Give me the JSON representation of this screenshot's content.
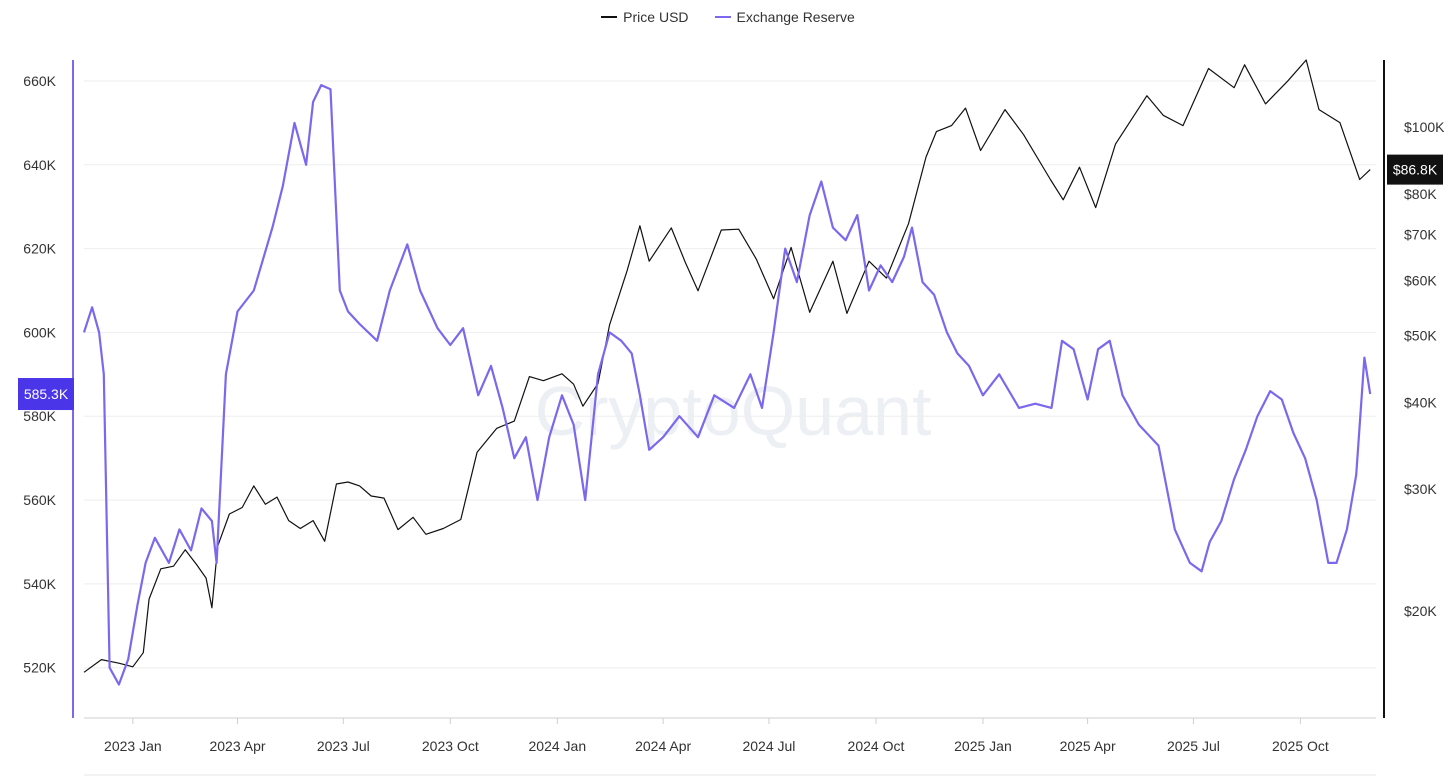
{
  "legend": {
    "price_label": "Price USD",
    "reserve_label": "Exchange Reserve"
  },
  "watermark": "CryptoQuant",
  "colors": {
    "price": "#111111",
    "reserve": "#7b68ee",
    "reserve_badge": "#4a35e8",
    "price_badge": "#111111"
  },
  "chart_data": {
    "type": "line",
    "x_ticks": [
      "2023 Jan",
      "2023 Apr",
      "2023 Jul",
      "2023 Oct",
      "2024 Jan",
      "2024 Apr",
      "2024 Jul",
      "2024 Oct",
      "2025 Jan",
      "2025 Apr",
      "2025 Jul",
      "2025 Oct"
    ],
    "x_range": [
      "2022-11-20",
      "2025-12-05"
    ],
    "y_left": {
      "label": "",
      "range": [
        508000,
        665000
      ],
      "ticks": [
        520000,
        540000,
        560000,
        580000,
        600000,
        620000,
        640000,
        660000
      ],
      "tick_labels": [
        "520K",
        "540K",
        "560K",
        "580K",
        "600K",
        "620K",
        "640K",
        "660K"
      ]
    },
    "y_right": {
      "label": "",
      "scale": "log",
      "range": [
        14000,
        125000
      ],
      "ticks": [
        20000,
        30000,
        40000,
        50000,
        60000,
        70000,
        80000,
        100000
      ],
      "tick_labels": [
        "$20K",
        "$30K",
        "$40K",
        "$50K",
        "$60K",
        "$70K",
        "$80K",
        "$100K"
      ]
    },
    "current_values": {
      "reserve": "585.3K",
      "price": "$86.8K"
    },
    "series": [
      {
        "name": "Price USD",
        "axis": "right",
        "points": [
          [
            "2022-11-20",
            16300
          ],
          [
            "2022-12-05",
            17000
          ],
          [
            "2022-12-20",
            16800
          ],
          [
            "2023-01-01",
            16600
          ],
          [
            "2023-01-10",
            17400
          ],
          [
            "2023-01-15",
            20800
          ],
          [
            "2023-01-25",
            23000
          ],
          [
            "2023-02-05",
            23200
          ],
          [
            "2023-02-15",
            24500
          ],
          [
            "2023-02-25",
            23300
          ],
          [
            "2023-03-05",
            22300
          ],
          [
            "2023-03-10",
            20200
          ],
          [
            "2023-03-15",
            24800
          ],
          [
            "2023-03-25",
            27600
          ],
          [
            "2023-04-05",
            28200
          ],
          [
            "2023-04-15",
            30300
          ],
          [
            "2023-04-25",
            28500
          ],
          [
            "2023-05-05",
            29200
          ],
          [
            "2023-05-15",
            27000
          ],
          [
            "2023-05-25",
            26300
          ],
          [
            "2023-06-05",
            27000
          ],
          [
            "2023-06-15",
            25200
          ],
          [
            "2023-06-25",
            30500
          ],
          [
            "2023-07-05",
            30700
          ],
          [
            "2023-07-15",
            30300
          ],
          [
            "2023-07-25",
            29300
          ],
          [
            "2023-08-05",
            29100
          ],
          [
            "2023-08-17",
            26200
          ],
          [
            "2023-08-30",
            27300
          ],
          [
            "2023-09-10",
            25800
          ],
          [
            "2023-09-25",
            26300
          ],
          [
            "2023-10-10",
            27100
          ],
          [
            "2023-10-24",
            33900
          ],
          [
            "2023-11-10",
            36700
          ],
          [
            "2023-11-25",
            37600
          ],
          [
            "2023-12-08",
            43600
          ],
          [
            "2023-12-20",
            43000
          ],
          [
            "2024-01-05",
            44000
          ],
          [
            "2024-01-15",
            42500
          ],
          [
            "2024-01-23",
            39500
          ],
          [
            "2024-02-05",
            42600
          ],
          [
            "2024-02-15",
            51800
          ],
          [
            "2024-03-01",
            62000
          ],
          [
            "2024-03-12",
            72000
          ],
          [
            "2024-03-20",
            64000
          ],
          [
            "2024-04-08",
            71500
          ],
          [
            "2024-04-20",
            63800
          ],
          [
            "2024-05-01",
            58000
          ],
          [
            "2024-05-21",
            71000
          ],
          [
            "2024-06-05",
            71200
          ],
          [
            "2024-06-20",
            64500
          ],
          [
            "2024-07-05",
            56500
          ],
          [
            "2024-07-20",
            67000
          ],
          [
            "2024-08-05",
            54000
          ],
          [
            "2024-08-25",
            64000
          ],
          [
            "2024-09-06",
            53800
          ],
          [
            "2024-09-25",
            64000
          ],
          [
            "2024-10-10",
            60500
          ],
          [
            "2024-10-29",
            72500
          ],
          [
            "2024-11-13",
            90500
          ],
          [
            "2024-11-22",
            98500
          ],
          [
            "2024-12-05",
            100500
          ],
          [
            "2024-12-17",
            106500
          ],
          [
            "2024-12-30",
            92500
          ],
          [
            "2025-01-20",
            106000
          ],
          [
            "2025-02-05",
            97500
          ],
          [
            "2025-02-28",
            84000
          ],
          [
            "2025-03-11",
            78500
          ],
          [
            "2025-03-25",
            87500
          ],
          [
            "2025-04-08",
            76500
          ],
          [
            "2025-04-25",
            94500
          ],
          [
            "2025-05-22",
            111000
          ],
          [
            "2025-06-05",
            104000
          ],
          [
            "2025-06-22",
            100500
          ],
          [
            "2025-07-14",
            121500
          ],
          [
            "2025-08-05",
            114000
          ],
          [
            "2025-08-14",
            123000
          ],
          [
            "2025-09-01",
            108000
          ],
          [
            "2025-09-20",
            116500
          ],
          [
            "2025-10-06",
            125000
          ],
          [
            "2025-10-17",
            106000
          ],
          [
            "2025-11-04",
            101500
          ],
          [
            "2025-11-21",
            84000
          ],
          [
            "2025-11-30",
            86800
          ]
        ]
      },
      {
        "name": "Exchange Reserve",
        "axis": "left",
        "points": [
          [
            "2022-11-20",
            600000
          ],
          [
            "2022-11-27",
            606000
          ],
          [
            "2022-12-03",
            600000
          ],
          [
            "2022-12-07",
            590000
          ],
          [
            "2022-12-12",
            520000
          ],
          [
            "2022-12-20",
            516000
          ],
          [
            "2022-12-28",
            522000
          ],
          [
            "2023-01-05",
            535000
          ],
          [
            "2023-01-12",
            545000
          ],
          [
            "2023-01-20",
            551000
          ],
          [
            "2023-02-01",
            545000
          ],
          [
            "2023-02-10",
            553000
          ],
          [
            "2023-02-20",
            548000
          ],
          [
            "2023-03-01",
            558000
          ],
          [
            "2023-03-10",
            555000
          ],
          [
            "2023-03-14",
            545000
          ],
          [
            "2023-03-22",
            590000
          ],
          [
            "2023-04-01",
            605000
          ],
          [
            "2023-04-15",
            610000
          ],
          [
            "2023-05-01",
            625000
          ],
          [
            "2023-05-10",
            635000
          ],
          [
            "2023-05-20",
            650000
          ],
          [
            "2023-05-30",
            640000
          ],
          [
            "2023-06-05",
            655000
          ],
          [
            "2023-06-12",
            659000
          ],
          [
            "2023-06-20",
            658000
          ],
          [
            "2023-06-28",
            610000
          ],
          [
            "2023-07-05",
            605000
          ],
          [
            "2023-07-15",
            602000
          ],
          [
            "2023-07-30",
            598000
          ],
          [
            "2023-08-10",
            610000
          ],
          [
            "2023-08-25",
            621000
          ],
          [
            "2023-09-05",
            610000
          ],
          [
            "2023-09-20",
            601000
          ],
          [
            "2023-10-01",
            597000
          ],
          [
            "2023-10-12",
            601000
          ],
          [
            "2023-10-25",
            585000
          ],
          [
            "2023-11-05",
            592000
          ],
          [
            "2023-11-15",
            582000
          ],
          [
            "2023-11-25",
            570000
          ],
          [
            "2023-12-05",
            575000
          ],
          [
            "2023-12-15",
            560000
          ],
          [
            "2023-12-25",
            575000
          ],
          [
            "2024-01-05",
            585000
          ],
          [
            "2024-01-15",
            578000
          ],
          [
            "2024-01-25",
            560000
          ],
          [
            "2024-02-05",
            590000
          ],
          [
            "2024-02-15",
            600000
          ],
          [
            "2024-02-25",
            598000
          ],
          [
            "2024-03-05",
            595000
          ],
          [
            "2024-03-12",
            585000
          ],
          [
            "2024-03-20",
            572000
          ],
          [
            "2024-04-01",
            575000
          ],
          [
            "2024-04-15",
            580000
          ],
          [
            "2024-05-01",
            575000
          ],
          [
            "2024-05-15",
            585000
          ],
          [
            "2024-06-01",
            582000
          ],
          [
            "2024-06-15",
            590000
          ],
          [
            "2024-06-25",
            582000
          ],
          [
            "2024-07-05",
            600000
          ],
          [
            "2024-07-15",
            620000
          ],
          [
            "2024-07-25",
            612000
          ],
          [
            "2024-08-05",
            628000
          ],
          [
            "2024-08-15",
            636000
          ],
          [
            "2024-08-25",
            625000
          ],
          [
            "2024-09-05",
            622000
          ],
          [
            "2024-09-15",
            628000
          ],
          [
            "2024-09-25",
            610000
          ],
          [
            "2024-10-05",
            616000
          ],
          [
            "2024-10-15",
            612000
          ],
          [
            "2024-10-25",
            618000
          ],
          [
            "2024-11-01",
            625000
          ],
          [
            "2024-11-10",
            612000
          ],
          [
            "2024-11-20",
            609000
          ],
          [
            "2024-12-01",
            600000
          ],
          [
            "2024-12-10",
            595000
          ],
          [
            "2024-12-20",
            592000
          ],
          [
            "2025-01-01",
            585000
          ],
          [
            "2025-01-15",
            590000
          ],
          [
            "2025-02-01",
            582000
          ],
          [
            "2025-02-15",
            583000
          ],
          [
            "2025-03-01",
            582000
          ],
          [
            "2025-03-10",
            598000
          ],
          [
            "2025-03-20",
            596000
          ],
          [
            "2025-04-01",
            584000
          ],
          [
            "2025-04-10",
            596000
          ],
          [
            "2025-04-20",
            598000
          ],
          [
            "2025-05-01",
            585000
          ],
          [
            "2025-05-15",
            578000
          ],
          [
            "2025-06-01",
            573000
          ],
          [
            "2025-06-15",
            553000
          ],
          [
            "2025-06-28",
            545000
          ],
          [
            "2025-07-08",
            543000
          ],
          [
            "2025-07-15",
            550000
          ],
          [
            "2025-07-25",
            555000
          ],
          [
            "2025-08-05",
            565000
          ],
          [
            "2025-08-15",
            572000
          ],
          [
            "2025-08-25",
            580000
          ],
          [
            "2025-09-05",
            586000
          ],
          [
            "2025-09-15",
            584000
          ],
          [
            "2025-09-25",
            576000
          ],
          [
            "2025-10-05",
            570000
          ],
          [
            "2025-10-15",
            560000
          ],
          [
            "2025-10-25",
            545000
          ],
          [
            "2025-11-01",
            545000
          ],
          [
            "2025-11-10",
            553000
          ],
          [
            "2025-11-18",
            566000
          ],
          [
            "2025-11-25",
            594000
          ],
          [
            "2025-11-30",
            585300
          ]
        ]
      }
    ]
  }
}
